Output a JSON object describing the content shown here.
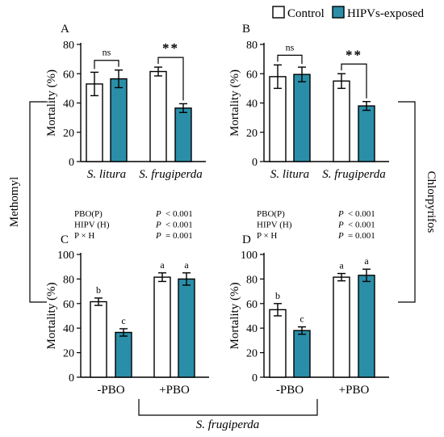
{
  "legend": {
    "control_label": "Control",
    "hipv_label": "HIPVs-exposed",
    "control_color": "#ffffff",
    "hipv_color": "#2a8ea8"
  },
  "side_labels": {
    "left": "Methomyl",
    "right": "Chlorpyrifos",
    "bottom": "S. frugiperda"
  },
  "chart_data": [
    {
      "panel": "A",
      "type": "bar",
      "ylabel": "Mortality (%)",
      "ylim": [
        0,
        80
      ],
      "yticks": [
        0,
        20,
        40,
        60,
        80
      ],
      "categories": [
        "S. litura",
        "S. frugiperda"
      ],
      "category_style": "italic",
      "series": [
        {
          "name": "Control",
          "values": [
            53,
            61.5
          ],
          "errors": [
            8,
            3
          ]
        },
        {
          "name": "HIPVs-exposed",
          "values": [
            56.5,
            36.5
          ],
          "errors": [
            6,
            3
          ]
        }
      ],
      "significance": [
        "ns",
        "**"
      ],
      "letters": null,
      "stats": null
    },
    {
      "panel": "B",
      "type": "bar",
      "ylabel": "Mortality (%)",
      "ylim": [
        0,
        80
      ],
      "yticks": [
        0,
        20,
        40,
        60,
        80
      ],
      "categories": [
        "S. litura",
        "S. frugiperda"
      ],
      "category_style": "italic",
      "series": [
        {
          "name": "Control",
          "values": [
            58,
            55
          ],
          "errors": [
            8,
            5
          ]
        },
        {
          "name": "HIPVs-exposed",
          "values": [
            59.5,
            38
          ],
          "errors": [
            5,
            3
          ]
        }
      ],
      "significance": [
        "ns",
        "**"
      ],
      "letters": null,
      "stats": null
    },
    {
      "panel": "C",
      "type": "bar",
      "ylabel": "Mortality (%)",
      "ylim": [
        0,
        100
      ],
      "yticks": [
        0,
        20,
        40,
        60,
        80,
        100
      ],
      "categories": [
        "-PBO",
        "+PBO"
      ],
      "category_style": "normal",
      "series": [
        {
          "name": "Control",
          "values": [
            61.5,
            81.5
          ],
          "errors": [
            3,
            3.5
          ]
        },
        {
          "name": "HIPVs-exposed",
          "values": [
            36.5,
            80
          ],
          "errors": [
            3,
            5
          ]
        }
      ],
      "significance": null,
      "letters": [
        [
          "b",
          "c"
        ],
        [
          "a",
          "a"
        ]
      ],
      "stats": [
        {
          "term": "PBO(P)",
          "p_label": "P",
          "p_value": "< 0.001"
        },
        {
          "term": "HIPV (H)",
          "p_label": "P",
          "p_value": "< 0.001"
        },
        {
          "term": "P × H",
          "p_label": "P",
          "p_value": "= 0.001"
        }
      ]
    },
    {
      "panel": "D",
      "type": "bar",
      "ylabel": "Mortality (%)",
      "ylim": [
        0,
        100
      ],
      "yticks": [
        0,
        20,
        40,
        60,
        80,
        100
      ],
      "categories": [
        "-PBO",
        "+PBO"
      ],
      "category_style": "normal",
      "series": [
        {
          "name": "Control",
          "values": [
            55,
            81.5
          ],
          "errors": [
            5,
            3
          ]
        },
        {
          "name": "HIPVs-exposed",
          "values": [
            38,
            83
          ],
          "errors": [
            3,
            5
          ]
        }
      ],
      "significance": null,
      "letters": [
        [
          "b",
          "c"
        ],
        [
          "a",
          "a"
        ]
      ],
      "stats": [
        {
          "term": "PBO(P)",
          "p_label": "P",
          "p_value": "< 0.001"
        },
        {
          "term": "HIPV (H)",
          "p_label": "P",
          "p_value": "< 0.001"
        },
        {
          "term": "P × H",
          "p_label": "P",
          "p_value": "= 0.001"
        }
      ]
    }
  ]
}
